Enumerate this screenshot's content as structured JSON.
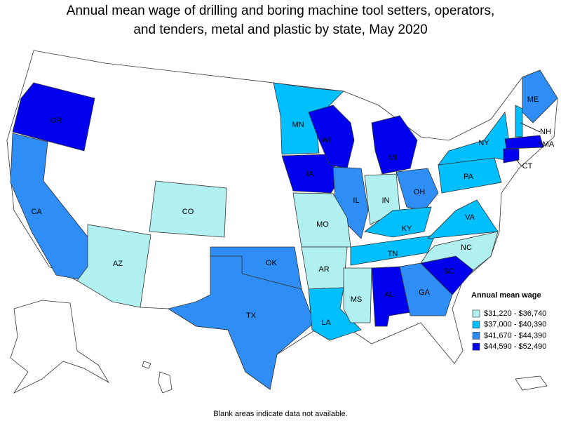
{
  "title": [
    "Annual mean wage of drilling and boring machine tool setters, operators,",
    "and tenders, metal and plastic by state, May 2020"
  ],
  "legend": {
    "title": "Annual mean wage",
    "items": [
      {
        "label": "$31,220 - $36,740",
        "color": "#b0f0f0"
      },
      {
        "label": "$37,000 - $40,390",
        "color": "#00bfff"
      },
      {
        "label": "$41,670 - $44,390",
        "color": "#2e8ef5"
      },
      {
        "label": "$44,590 - $52,490",
        "color": "#0000ee"
      }
    ]
  },
  "states": [
    {
      "label": "OR",
      "color": "#0000ee"
    },
    {
      "label": "CA",
      "color": "#2e8ef5"
    },
    {
      "label": "AZ",
      "color": "#b0f0f0"
    },
    {
      "label": "CO",
      "color": "#b0f0f0"
    },
    {
      "label": "MN",
      "color": "#00bfff"
    },
    {
      "label": "IA",
      "color": "#0000ee"
    },
    {
      "label": "WI",
      "color": "#0000ee"
    },
    {
      "label": "MI",
      "color": "#0000ee"
    },
    {
      "label": "IL",
      "color": "#2e8ef5"
    },
    {
      "label": "IN",
      "color": "#b0f0f0"
    },
    {
      "label": "OH",
      "color": "#2e8ef5"
    },
    {
      "label": "KY",
      "color": "#00bfff"
    },
    {
      "label": "TN",
      "color": "#00bfff"
    },
    {
      "label": "MO",
      "color": "#b0f0f0"
    },
    {
      "label": "AR",
      "color": "#b0f0f0"
    },
    {
      "label": "OK",
      "color": "#2e8ef5"
    },
    {
      "label": "TX",
      "color": "#2e8ef5"
    },
    {
      "label": "LA",
      "color": "#00bfff"
    },
    {
      "label": "MS",
      "color": "#b0f0f0"
    },
    {
      "label": "AL",
      "color": "#0000ee"
    },
    {
      "label": "GA",
      "color": "#2e8ef5"
    },
    {
      "label": "SC",
      "color": "#0000ee"
    },
    {
      "label": "NC",
      "color": "#b0f0f0"
    },
    {
      "label": "VA",
      "color": "#00bfff"
    },
    {
      "label": "PA",
      "color": "#00bfff"
    },
    {
      "label": "NY",
      "color": "#00bfff"
    },
    {
      "label": "ME",
      "color": "#2e8ef5"
    },
    {
      "label": "NH",
      "color": "#00bfff"
    },
    {
      "label": "MA",
      "color": "#0000ee"
    },
    {
      "label": "CT",
      "color": "#0000ee"
    }
  ],
  "footnote": "Blank areas indicate data not available."
}
